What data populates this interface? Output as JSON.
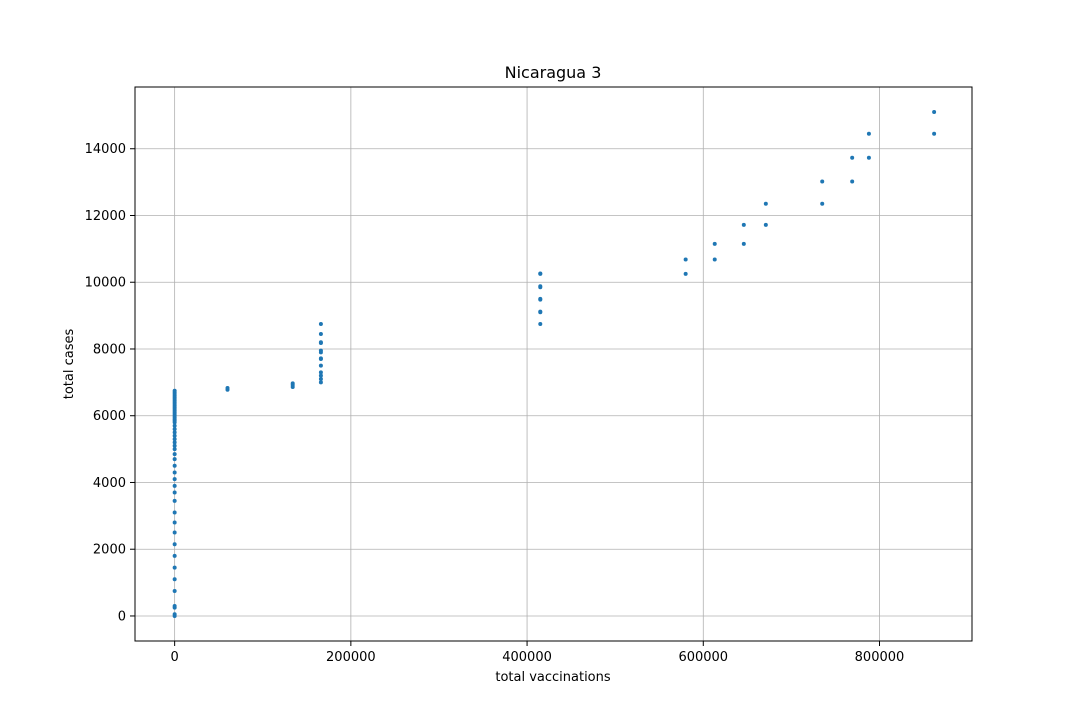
{
  "chart_data": {
    "type": "scatter",
    "title": "Nicaragua 3",
    "xlabel": "total vaccinations",
    "ylabel": "total cases",
    "xlim": [
      -45000,
      905000
    ],
    "ylim": [
      -750,
      15850
    ],
    "xticks": [
      0,
      200000,
      400000,
      600000,
      800000
    ],
    "yticks": [
      0,
      2000,
      4000,
      6000,
      8000,
      10000,
      12000,
      14000
    ],
    "grid": true,
    "marker_color": "#1f77b4",
    "series": [
      {
        "points": [
          [
            0,
            0
          ],
          [
            0,
            50
          ],
          [
            0,
            250
          ],
          [
            0,
            300
          ],
          [
            0,
            750
          ],
          [
            0,
            1100
          ],
          [
            0,
            1450
          ],
          [
            0,
            1800
          ],
          [
            0,
            2150
          ],
          [
            0,
            2500
          ],
          [
            0,
            2800
          ],
          [
            0,
            3100
          ],
          [
            0,
            3450
          ],
          [
            0,
            3700
          ],
          [
            0,
            3900
          ],
          [
            0,
            4100
          ],
          [
            0,
            4300
          ],
          [
            0,
            4500
          ],
          [
            0,
            4700
          ],
          [
            0,
            4850
          ],
          [
            0,
            5000
          ],
          [
            0,
            5100
          ],
          [
            0,
            5200
          ],
          [
            0,
            5300
          ],
          [
            0,
            5400
          ],
          [
            0,
            5500
          ],
          [
            0,
            5600
          ],
          [
            0,
            5700
          ],
          [
            0,
            5800
          ],
          [
            0,
            5850
          ],
          [
            0,
            5900
          ],
          [
            0,
            5950
          ],
          [
            0,
            6000
          ],
          [
            0,
            6050
          ],
          [
            0,
            6100
          ],
          [
            0,
            6150
          ],
          [
            0,
            6200
          ],
          [
            0,
            6250
          ],
          [
            0,
            6300
          ],
          [
            0,
            6350
          ],
          [
            0,
            6400
          ],
          [
            0,
            6450
          ],
          [
            0,
            6500
          ],
          [
            0,
            6550
          ],
          [
            0,
            6600
          ],
          [
            0,
            6650
          ],
          [
            0,
            6700
          ],
          [
            0,
            6750
          ],
          [
            60000,
            6780
          ],
          [
            60000,
            6830
          ],
          [
            134000,
            6860
          ],
          [
            134000,
            6920
          ],
          [
            134000,
            6970
          ],
          [
            166000,
            7000
          ],
          [
            166000,
            7100
          ],
          [
            166000,
            7200
          ],
          [
            166000,
            7300
          ],
          [
            166000,
            7500
          ],
          [
            166000,
            7700
          ],
          [
            166000,
            7720
          ],
          [
            166000,
            7900
          ],
          [
            166000,
            7950
          ],
          [
            166000,
            8180
          ],
          [
            166000,
            8200
          ],
          [
            166000,
            8450
          ],
          [
            166000,
            8750
          ],
          [
            415000,
            8750
          ],
          [
            415000,
            9100
          ],
          [
            415000,
            9120
          ],
          [
            415000,
            9480
          ],
          [
            415000,
            9500
          ],
          [
            415000,
            9850
          ],
          [
            415000,
            9880
          ],
          [
            415000,
            10250
          ],
          [
            415000,
            10260
          ],
          [
            580000,
            10250
          ],
          [
            580000,
            10680
          ],
          [
            613000,
            10680
          ],
          [
            613000,
            11150
          ],
          [
            646000,
            11150
          ],
          [
            646000,
            11720
          ],
          [
            671000,
            11720
          ],
          [
            671000,
            12350
          ],
          [
            735000,
            12350
          ],
          [
            735000,
            13020
          ],
          [
            769000,
            13020
          ],
          [
            769000,
            13730
          ],
          [
            788000,
            13730
          ],
          [
            788000,
            14450
          ],
          [
            862000,
            14450
          ],
          [
            862000,
            15100
          ]
        ]
      }
    ]
  }
}
